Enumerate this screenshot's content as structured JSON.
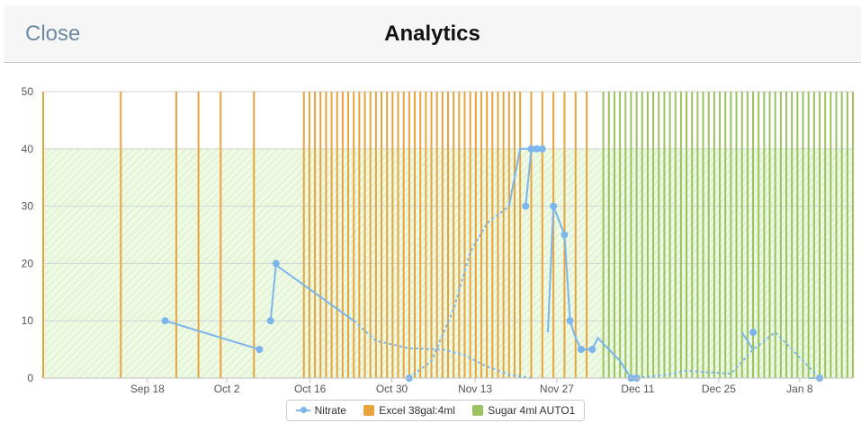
{
  "header": {
    "close_label": "Close",
    "title": "Analytics"
  },
  "chart_data": {
    "type": "line",
    "y_ticks": [
      "0",
      "10",
      "20",
      "30",
      "40",
      "50"
    ],
    "ylim": [
      0,
      50
    ],
    "x_ticks": [
      "Sep 18",
      "Oct 2",
      "Oct 16",
      "Oct 30",
      "Nov 13",
      "Nov 27",
      "Dec 11",
      "Dec 25",
      "Jan 8"
    ],
    "green_band": [
      0,
      40
    ],
    "series": [
      {
        "name": "Nitrate",
        "color": "#7cb5ec",
        "solid_segments": [
          [
            [
              11.0,
              10
            ],
            [
              19.5,
              5
            ]
          ],
          [
            [
              20.5,
              10
            ],
            [
              21.0,
              20
            ]
          ],
          [
            [
              20.8,
              20
            ],
            [
              28.0,
              10
            ]
          ],
          [
            [
              42.0,
              30
            ],
            [
              43.0,
              40
            ],
            [
              44.0,
              40
            ],
            [
              45.0,
              40
            ]
          ],
          [
            [
              43.5,
              30
            ],
            [
              44.0,
              40
            ]
          ],
          [
            [
              45.5,
              8
            ],
            [
              46.0,
              30
            ],
            [
              47.0,
              25
            ],
            [
              47.5,
              10
            ],
            [
              48.0,
              7
            ],
            [
              48.5,
              5
            ],
            [
              49.5,
              5
            ],
            [
              50.0,
              7
            ],
            [
              51.0,
              5
            ],
            [
              52.0,
              3
            ],
            [
              53.0,
              0
            ]
          ],
          [
            [
              63.0,
              8
            ],
            [
              64.0,
              5
            ]
          ],
          [
            [
              69.0,
              0
            ],
            [
              70.0,
              0
            ]
          ]
        ],
        "dashed_segments": [
          [
            [
              28.0,
              10
            ],
            [
              30,
              6.5
            ],
            [
              33,
              5.2
            ],
            [
              36,
              5
            ],
            [
              38,
              4
            ],
            [
              40,
              2
            ],
            [
              42,
              0.6
            ],
            [
              44,
              0
            ]
          ],
          [
            [
              33.0,
              0
            ],
            [
              35,
              3
            ],
            [
              37,
              12
            ],
            [
              38.5,
              22
            ],
            [
              40,
              27
            ],
            [
              42.0,
              30
            ]
          ],
          [
            [
              53.0,
              0
            ],
            [
              56,
              0.5
            ],
            [
              58,
              1.3
            ],
            [
              60,
              1
            ],
            [
              62,
              0.8
            ],
            [
              64,
              5
            ],
            [
              66,
              8
            ],
            [
              68,
              4
            ],
            [
              70,
              0
            ]
          ]
        ],
        "markers": [
          [
            11.0,
            10
          ],
          [
            19.5,
            5
          ],
          [
            20.5,
            10
          ],
          [
            21.0,
            20
          ],
          [
            43.5,
            30
          ],
          [
            44.0,
            40
          ],
          [
            44.5,
            40
          ],
          [
            45.0,
            40
          ],
          [
            46.0,
            30
          ],
          [
            47.0,
            25
          ],
          [
            47.5,
            10
          ],
          [
            48.5,
            5
          ],
          [
            49.5,
            5
          ],
          [
            33.0,
            0
          ],
          [
            53.0,
            0
          ],
          [
            53.5,
            0
          ],
          [
            64.0,
            8
          ],
          [
            70.0,
            0
          ]
        ]
      },
      {
        "name": "Excel 38gal:4ml",
        "color": "#e8a33c"
      },
      {
        "name": "Sugar 4ml AUTO1",
        "color": "#9ac25e"
      }
    ],
    "excel_events": [
      0,
      7,
      12,
      14,
      16,
      19,
      23.5,
      24,
      24.5,
      25,
      25.5,
      26,
      26.5,
      27,
      27.5,
      28,
      28.5,
      29,
      29.5,
      30,
      30.5,
      31,
      31.5,
      32,
      32.5,
      33,
      33.5,
      34,
      34.5,
      35,
      35.5,
      36,
      36.5,
      37,
      37.5,
      38,
      38.5,
      39,
      39.5,
      40,
      40.5,
      41,
      41.5,
      42,
      42.5,
      43,
      44,
      45,
      46,
      47,
      48,
      49
    ],
    "sugar_events": [
      50.5,
      51,
      51.5,
      52,
      52.5,
      53,
      53.5,
      54,
      54.5,
      55,
      55.5,
      56,
      56.5,
      57,
      57.5,
      58,
      58.5,
      59,
      59.5,
      60,
      60.5,
      61,
      61.5,
      62,
      62.5,
      63,
      63.5,
      64,
      64.5,
      65,
      65.5,
      66,
      66.5,
      67,
      67.5,
      68,
      68.5,
      69,
      69.5,
      70,
      70.5,
      71,
      71.5,
      72,
      72.5,
      73
    ],
    "x_domain": [
      0,
      73
    ]
  },
  "legend": {
    "nitrate": "Nitrate",
    "excel": "Excel 38gal:4ml",
    "sugar": "Sugar 4ml AUTO1"
  }
}
